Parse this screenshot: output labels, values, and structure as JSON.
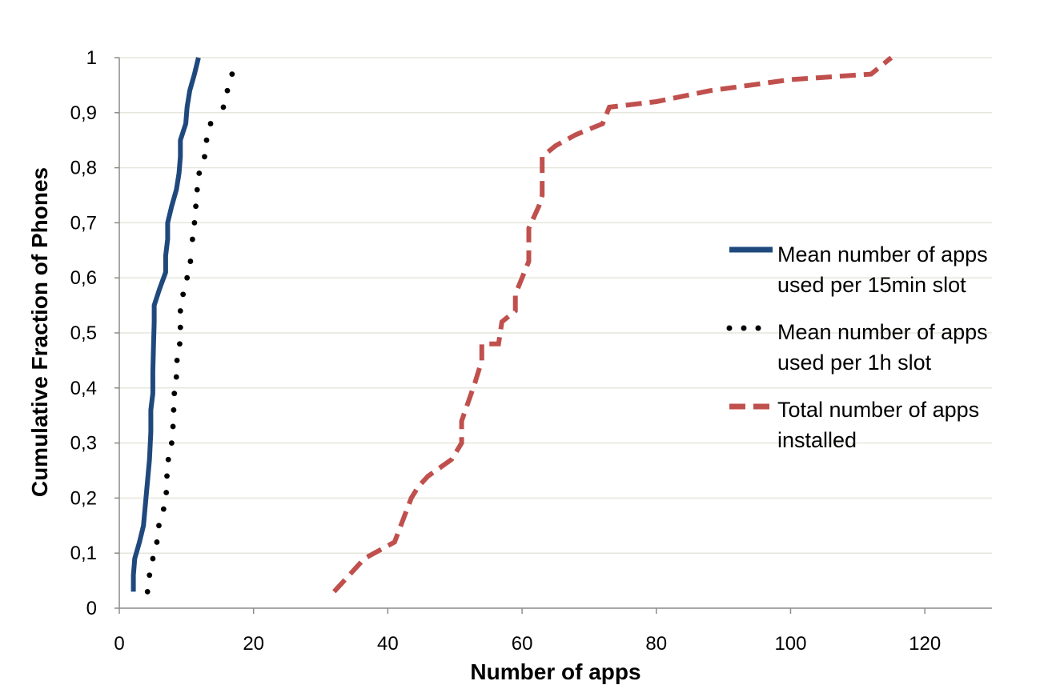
{
  "chart_data": {
    "type": "line",
    "xlabel": "Number of apps",
    "ylabel": "Cumulative Fraction of Phones",
    "xlim": [
      0,
      130
    ],
    "ylim": [
      0,
      1
    ],
    "x_ticks": [
      "0",
      "20",
      "40",
      "60",
      "80",
      "100",
      "120"
    ],
    "y_ticks": [
      "0",
      "0,1",
      "0,2",
      "0,3",
      "0,4",
      "0,5",
      "0,6",
      "0,7",
      "0,8",
      "0,9",
      "1"
    ],
    "grid": "horizontal",
    "legend_position": "right",
    "series": [
      {
        "name_lines": [
          "Mean number of apps",
          "used per 15min slot"
        ],
        "style": "solid",
        "color": "#1f497d",
        "points": [
          [
            2.1,
            0.03
          ],
          [
            2.1,
            0.06
          ],
          [
            2.3,
            0.09
          ],
          [
            3,
            0.12
          ],
          [
            3.6,
            0.15
          ],
          [
            3.9,
            0.19
          ],
          [
            4.2,
            0.23
          ],
          [
            4.5,
            0.27
          ],
          [
            4.7,
            0.32
          ],
          [
            4.7,
            0.36
          ],
          [
            5,
            0.39
          ],
          [
            5,
            0.43
          ],
          [
            5.1,
            0.48
          ],
          [
            5.2,
            0.52
          ],
          [
            5.2,
            0.55
          ],
          [
            6,
            0.58
          ],
          [
            6.9,
            0.61
          ],
          [
            6.9,
            0.64
          ],
          [
            7.2,
            0.67
          ],
          [
            7.2,
            0.7
          ],
          [
            7.8,
            0.73
          ],
          [
            8.5,
            0.76
          ],
          [
            8.9,
            0.79
          ],
          [
            9.1,
            0.82
          ],
          [
            9.1,
            0.85
          ],
          [
            9.9,
            0.88
          ],
          [
            10.1,
            0.91
          ],
          [
            10.5,
            0.94
          ],
          [
            11.2,
            0.97
          ],
          [
            11.8,
            1.0
          ]
        ]
      },
      {
        "name_lines": [
          "Mean number of apps",
          "used per 1h slot"
        ],
        "style": "dotted",
        "color": "#000000",
        "points": [
          [
            4.2,
            0.03
          ],
          [
            4.5,
            0.06
          ],
          [
            5,
            0.09
          ],
          [
            5.6,
            0.12
          ],
          [
            5.9,
            0.15
          ],
          [
            6.6,
            0.18
          ],
          [
            7,
            0.21
          ],
          [
            7.1,
            0.24
          ],
          [
            7.3,
            0.27
          ],
          [
            7.8,
            0.3
          ],
          [
            8,
            0.33
          ],
          [
            8.1,
            0.36
          ],
          [
            8.2,
            0.39
          ],
          [
            8.5,
            0.42
          ],
          [
            8.6,
            0.45
          ],
          [
            9,
            0.48
          ],
          [
            9.1,
            0.51
          ],
          [
            9.1,
            0.54
          ],
          [
            9.5,
            0.57
          ],
          [
            10.1,
            0.6
          ],
          [
            10.6,
            0.63
          ],
          [
            10.9,
            0.67
          ],
          [
            11.2,
            0.7
          ],
          [
            11.4,
            0.73
          ],
          [
            11.6,
            0.76
          ],
          [
            11.9,
            0.79
          ],
          [
            12.7,
            0.82
          ],
          [
            13,
            0.85
          ],
          [
            13.6,
            0.88
          ],
          [
            15.5,
            0.91
          ],
          [
            16.1,
            0.94
          ],
          [
            16.8,
            0.97
          ]
        ]
      },
      {
        "name_lines": [
          "Total number of apps",
          "installed"
        ],
        "style": "dashed",
        "color": "#c0504d",
        "points": [
          [
            32,
            0.03
          ],
          [
            36.5,
            0.09
          ],
          [
            41,
            0.12
          ],
          [
            43.5,
            0.2
          ],
          [
            44.5,
            0.22
          ],
          [
            46,
            0.24
          ],
          [
            49.5,
            0.27
          ],
          [
            51,
            0.3
          ],
          [
            51,
            0.34
          ],
          [
            53,
            0.41
          ],
          [
            54,
            0.45
          ],
          [
            54,
            0.48
          ],
          [
            56.5,
            0.48
          ],
          [
            57,
            0.52
          ],
          [
            59,
            0.54
          ],
          [
            59,
            0.57
          ],
          [
            61,
            0.63
          ],
          [
            61,
            0.69
          ],
          [
            62.5,
            0.73
          ],
          [
            63,
            0.75
          ],
          [
            63,
            0.82
          ],
          [
            65,
            0.84
          ],
          [
            68,
            0.86
          ],
          [
            72,
            0.88
          ],
          [
            73,
            0.91
          ],
          [
            80,
            0.92
          ],
          [
            88,
            0.94
          ],
          [
            100,
            0.96
          ],
          [
            112,
            0.97
          ],
          [
            115,
            1.0
          ]
        ]
      }
    ]
  }
}
